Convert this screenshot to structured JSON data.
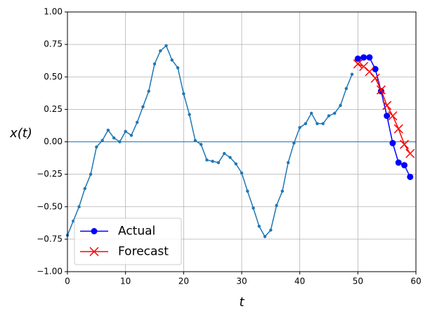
{
  "chart_data": {
    "type": "line",
    "xlabel": "t",
    "ylabel": "x(t)",
    "series": [
      {
        "color": "#1f77b4",
        "marker": "dot",
        "x": [
          0,
          1,
          2,
          3,
          4,
          5,
          6,
          7,
          8,
          9,
          10,
          11,
          12,
          13,
          14,
          15,
          16,
          17,
          18,
          19,
          20,
          21,
          22,
          23,
          24,
          25,
          26,
          27,
          28,
          29,
          30,
          31,
          32,
          33,
          34,
          35,
          36,
          37,
          38,
          39,
          40,
          41,
          42,
          43,
          44,
          45,
          46,
          47,
          48,
          49
        ],
        "values": [
          -0.72,
          -0.61,
          -0.5,
          -0.36,
          -0.25,
          -0.04,
          0.01,
          0.09,
          0.03,
          0.0,
          0.08,
          0.05,
          0.15,
          0.27,
          0.39,
          0.6,
          0.7,
          0.74,
          0.63,
          0.57,
          0.37,
          0.21,
          0.01,
          -0.02,
          -0.14,
          -0.15,
          -0.16,
          -0.09,
          -0.12,
          -0.17,
          -0.24,
          -0.38,
          -0.51,
          -0.65,
          -0.73,
          -0.68,
          -0.49,
          -0.38,
          -0.16,
          -0.01,
          0.11,
          0.14,
          0.22,
          0.14,
          0.14,
          0.2,
          0.22,
          0.28,
          0.41,
          0.52
        ]
      },
      {
        "name": "Actual",
        "color": "#0000ff",
        "marker": "circle",
        "x": [
          50,
          51,
          52,
          53,
          54,
          55,
          56,
          57,
          58,
          59
        ],
        "values": [
          0.64,
          0.65,
          0.65,
          0.56,
          0.39,
          0.2,
          -0.01,
          -0.16,
          -0.18,
          -0.27
        ]
      },
      {
        "name": "Forecast",
        "color": "#ff0000",
        "marker": "x",
        "x": [
          50,
          51,
          52,
          53,
          54,
          55,
          56,
          57,
          58,
          59
        ],
        "values": [
          0.6,
          0.58,
          0.54,
          0.49,
          0.4,
          0.28,
          0.2,
          0.1,
          -0.02,
          -0.09
        ]
      }
    ],
    "hlines": [
      0
    ],
    "xlim": [
      0,
      60
    ],
    "xticks": [
      0,
      10,
      20,
      30,
      40,
      50,
      60
    ],
    "ylim": [
      -1,
      1
    ],
    "yticks": [
      {
        "value": -1,
        "label": "−1.00"
      },
      {
        "value": -0.75,
        "label": "−0.75"
      },
      {
        "value": -0.5,
        "label": "−0.50"
      },
      {
        "value": -0.25,
        "label": "−0.25"
      },
      {
        "value": 0,
        "label": "0.00"
      },
      {
        "value": 0.25,
        "label": "0.25"
      },
      {
        "value": 0.5,
        "label": "0.50"
      },
      {
        "value": 0.75,
        "label": "0.75"
      },
      {
        "value": 1,
        "label": "1.00"
      }
    ],
    "grid": true,
    "legend": "lower left"
  }
}
